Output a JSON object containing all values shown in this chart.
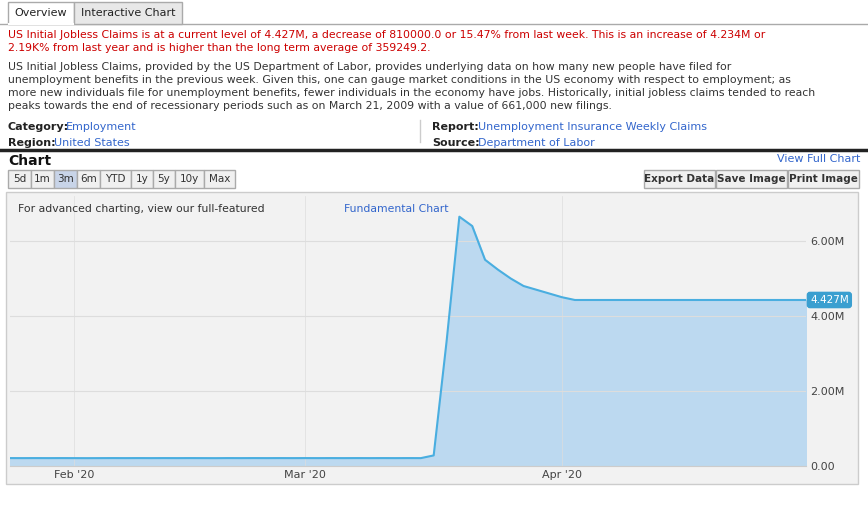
{
  "tab_labels": [
    "Overview",
    "Interactive Chart"
  ],
  "active_tab": "Overview",
  "text1_red_line1": "US Initial Jobless Claims is at a current level of 4.427M, a decrease of 810000.0 or 15.47% from last week. This is an increase of 4.234M or",
  "text1_red_line2": "2.19K% from last year and is higher than the long term average of 359249.2.",
  "text2_black_lines": [
    "US Initial Jobless Claims, provided by the US Department of Labor, provides underlying data on how many new people have filed for",
    "unemployment benefits in the previous week. Given this, one can gauge market conditions in the US economy with respect to employment; as",
    "more new individuals file for unemployment benefits, fewer individuals in the economy have jobs. Historically, initial jobless claims tended to reach",
    "peaks towards the end of recessionary periods such as on March 21, 2009 with a value of 661,000 new filings."
  ],
  "category_label": "Category:",
  "category_value": "Employment",
  "region_label": "Region:",
  "region_value": "United States",
  "report_label": "Report:",
  "report_value": "Unemployment Insurance Weekly Claims",
  "source_label": "Source:",
  "source_value": "Department of Labor",
  "chart_label": "Chart",
  "view_full_chart": "View Full Chart",
  "time_buttons": [
    "5d",
    "1m",
    "3m",
    "6m",
    "YTD",
    "1y",
    "5y",
    "10y",
    "Max"
  ],
  "active_time_button": "3m",
  "action_buttons": [
    "Export Data",
    "Save Image",
    "Print Image"
  ],
  "chart_note": "For advanced charting, view our full-featured ",
  "chart_note_link": "Fundamental Chart",
  "x_labels": [
    "Feb '20",
    "Mar '20",
    "Apr '20"
  ],
  "y_ticks": [
    0,
    2000000,
    4000000,
    6000000
  ],
  "y_tick_labels": [
    "0.00",
    "2.00M",
    "4.00M",
    "6.00M"
  ],
  "current_value_label": "4.427M",
  "line_color": "#4aaee0",
  "fill_color": "#bcd9f0",
  "current_label_bg": "#3a9fd0",
  "chart_data_x": [
    0,
    1,
    2,
    3,
    4,
    5,
    6,
    7,
    8,
    9,
    10,
    11,
    12,
    13,
    14,
    15,
    16,
    17,
    18,
    19,
    20,
    21,
    22,
    23,
    24,
    25,
    26,
    27,
    28,
    29,
    30,
    31,
    32,
    33,
    34,
    35,
    36,
    37,
    38,
    39,
    40,
    41,
    42,
    43,
    44,
    45,
    46,
    47,
    48,
    49,
    50,
    51,
    52,
    53,
    54,
    55,
    56,
    57,
    58,
    59,
    60,
    61,
    62
  ],
  "chart_data_y": [
    211000,
    210000,
    211000,
    210000,
    211000,
    210000,
    209000,
    210000,
    211000,
    210000,
    211000,
    210000,
    211000,
    210000,
    211000,
    210000,
    209000,
    211000,
    210000,
    211000,
    210000,
    211000,
    210000,
    211000,
    210000,
    211000,
    210000,
    211000,
    210000,
    211000,
    210000,
    211000,
    210000,
    282000,
    3307000,
    6648000,
    6400000,
    5500000,
    5237000,
    5000000,
    4800000,
    4700000,
    4600000,
    4500000,
    4427000,
    4427000,
    4427000,
    4427000,
    4427000,
    4427000,
    4427000,
    4427000,
    4427000,
    4427000,
    4427000,
    4427000,
    4427000,
    4427000,
    4427000,
    4427000,
    4427000,
    4427000,
    4427000
  ],
  "background_color": "#ffffff",
  "chart_bg_color": "#f2f2f2",
  "grid_color": "#dddddd",
  "border_color": "#cccccc",
  "tab_border_color": "#aaaaaa",
  "text_red_color": "#cc0000",
  "text_black_color": "#333333",
  "link_blue_color": "#3366cc",
  "label_bold_color": "#333333",
  "button_border_color": "#aaaaaa",
  "button_bg_color": "#f0f0f0",
  "active_button_bg": "#c8d4e8",
  "separator_color": "#222222",
  "tab_active_bg": "#ffffff",
  "tab_inactive_bg": "#e8e8e8"
}
